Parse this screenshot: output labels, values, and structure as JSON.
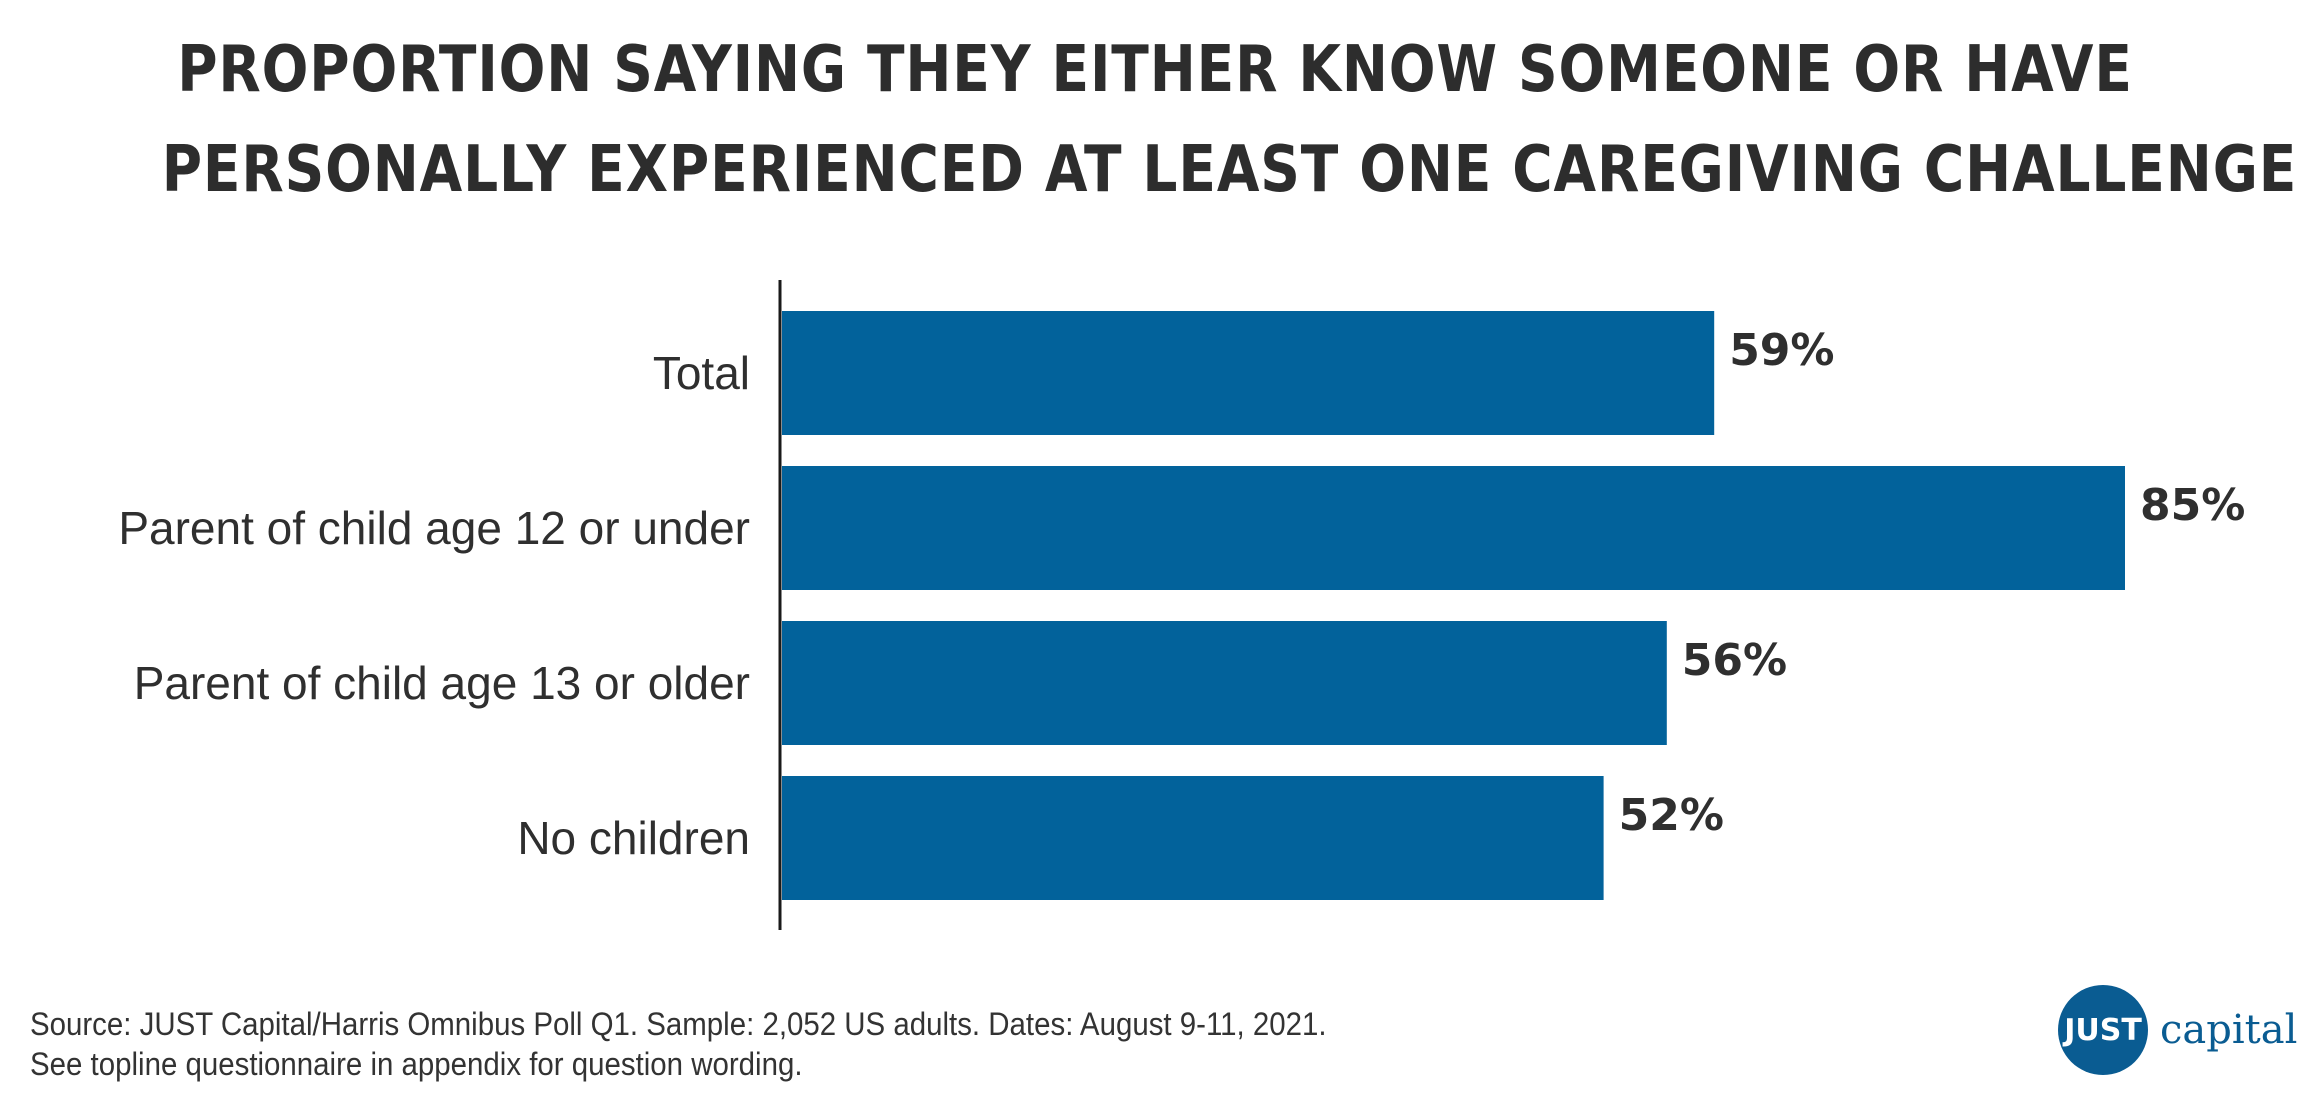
{
  "title_lines": [
    "PROPORTION SAYING THEY EITHER KNOW SOMEONE OR HAVE",
    "PERSONALLY EXPERIENCED AT LEAST ONE CAREGIVING CHALLENGE"
  ],
  "chart_data": {
    "type": "bar",
    "orientation": "horizontal",
    "title": "PROPORTION SAYING THEY EITHER KNOW SOMEONE OR HAVE PERSONALLY EXPERIENCED AT LEAST ONE CAREGIVING CHALLENGE",
    "categories": [
      "Total",
      "Parent of child age 12 or under",
      "Parent of child age 13 or older",
      "No children"
    ],
    "values": [
      59,
      85,
      56,
      52
    ],
    "value_labels": [
      "59%",
      "85%",
      "56%",
      "52%"
    ],
    "xlim": [
      0,
      100
    ],
    "grid": false,
    "bar_color": "#02629b"
  },
  "footer": {
    "line1": "Source: JUST Capital/Harris Omnibus Poll Q1. Sample: 2,052 US adults. Dates: August 9-11, 2021.",
    "line2": "See topline questionnaire in appendix for question wording."
  },
  "logo": {
    "badge": "JUST",
    "word": "capital",
    "color": "#0a5c92"
  }
}
